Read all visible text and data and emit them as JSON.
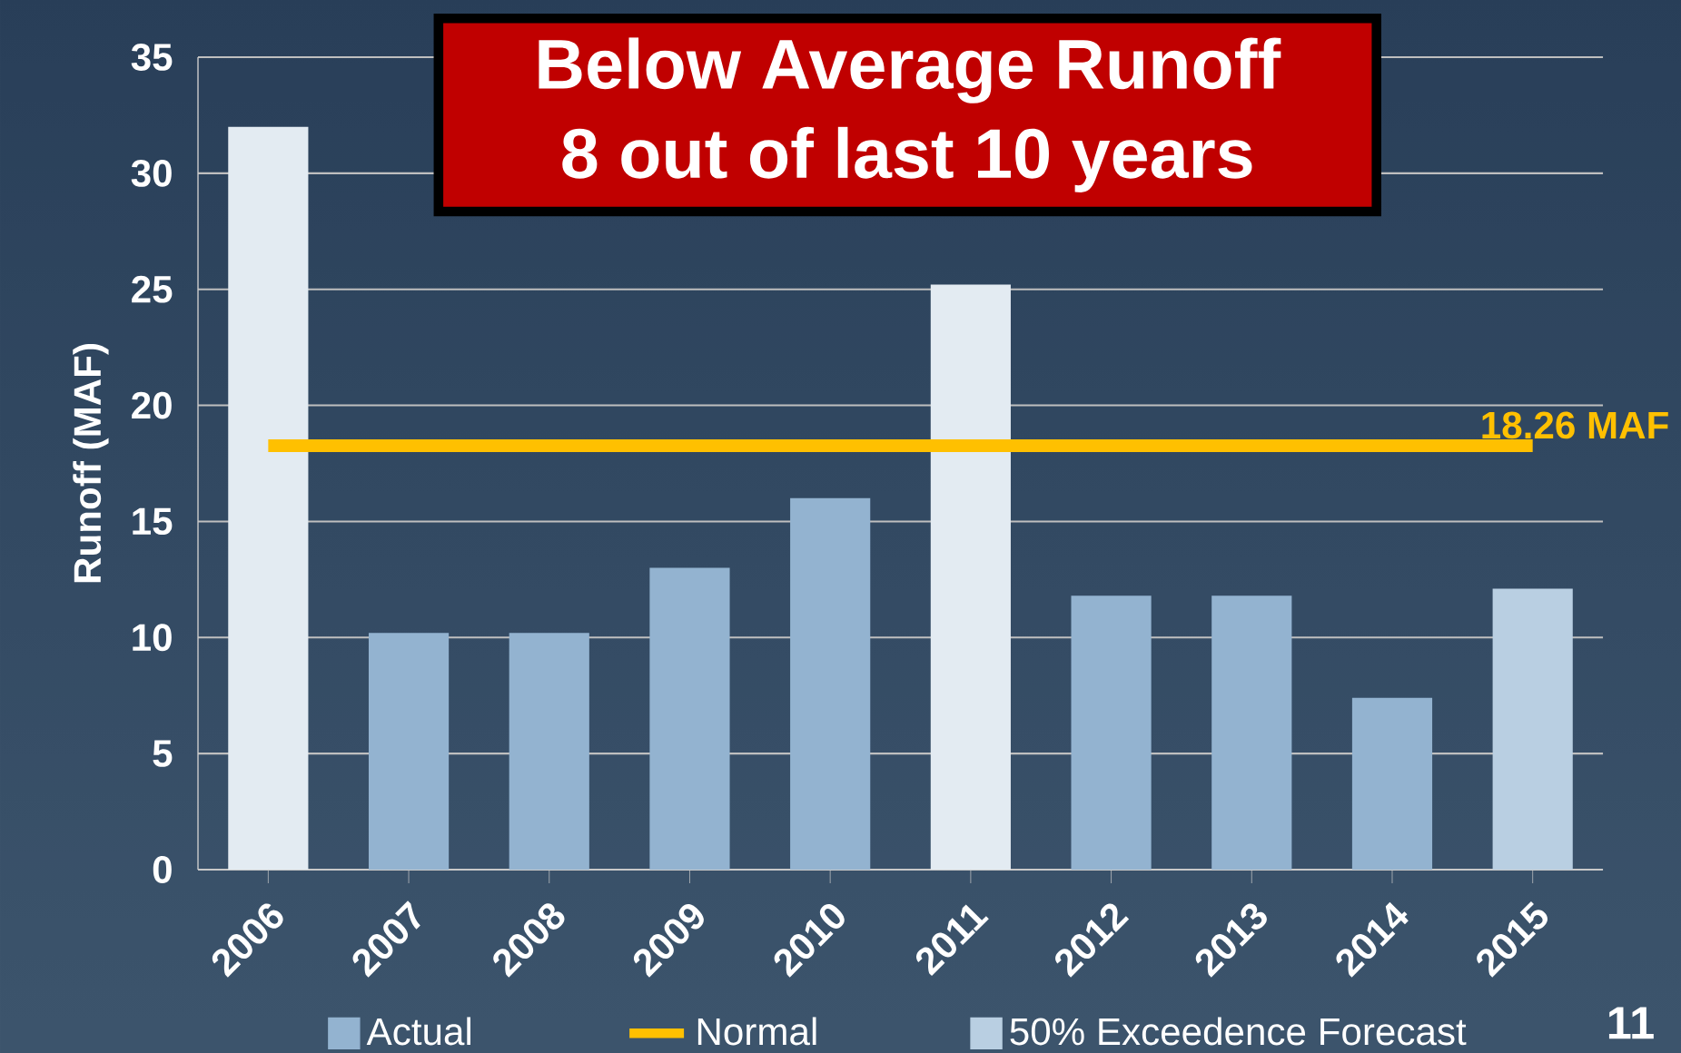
{
  "chart_data": {
    "type": "bar",
    "title": "Below Average Runoff\n8 out of last 10 years",
    "ylabel": "Runoff (MAF)",
    "categories": [
      "2006",
      "2007",
      "2008",
      "2009",
      "2010",
      "2011",
      "2012",
      "2013",
      "2014",
      "2015"
    ],
    "series": [
      {
        "name": "Actual",
        "color": "#93b3d0",
        "colors": [
          "#e3ebf2",
          "#93b3d0",
          "#93b3d0",
          "#93b3d0",
          "#93b3d0",
          "#e3ebf2",
          "#93b3d0",
          "#93b3d0",
          "#93b3d0",
          "#93b3d0"
        ],
        "values": [
          32.0,
          10.2,
          10.2,
          13.0,
          16.0,
          25.2,
          11.8,
          11.8,
          7.4,
          null
        ]
      },
      {
        "name": "Normal",
        "type": "line",
        "color": "#ffc000",
        "values": [
          18.26,
          18.26,
          18.26,
          18.26,
          18.26,
          18.26,
          18.26,
          18.26,
          18.26,
          18.26
        ]
      },
      {
        "name": "50% Exceedence Forecast",
        "color": "#b9cfe2",
        "values": [
          null,
          null,
          null,
          null,
          null,
          null,
          null,
          null,
          null,
          12.1
        ]
      }
    ],
    "annotations": [
      {
        "text": "18.26 MAF",
        "x": "2015",
        "y": 18.26
      },
      "11"
    ],
    "ylim": [
      0,
      35
    ],
    "yticks": [
      0,
      5,
      10,
      15,
      20,
      25,
      30,
      35
    ],
    "grid": "y",
    "legend": "bottom"
  }
}
